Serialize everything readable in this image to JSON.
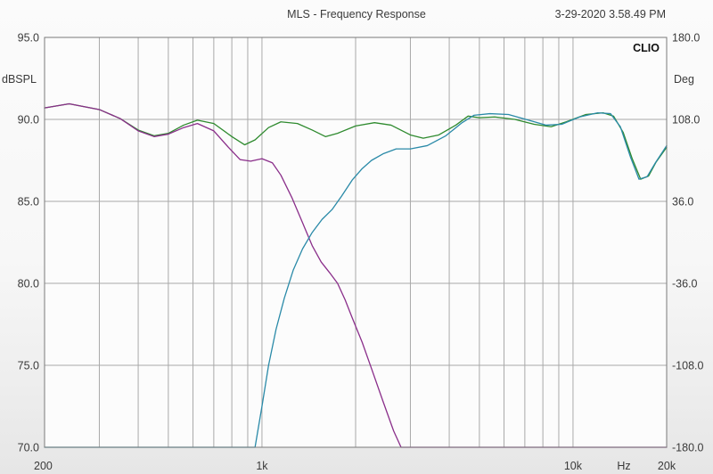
{
  "header": {
    "title": "MLS - Frequency Response",
    "timestamp": "3-29-2020 3.58.49 PM",
    "brand": "CLIO"
  },
  "chart_data": {
    "type": "line",
    "title": "MLS - Frequency Response",
    "x_scale": "log",
    "xlim": [
      200,
      20000
    ],
    "ylim": [
      70,
      95
    ],
    "y2lim": [
      -180,
      180
    ],
    "ylabel": "dBSPL",
    "y2label": "Deg",
    "xunit_label": "Hz",
    "x_ticks": [
      {
        "value": 200,
        "label": "200"
      },
      {
        "value": 1000,
        "label": "1k"
      },
      {
        "value": 10000,
        "label": "10k"
      },
      {
        "value": 20000,
        "label": "20k"
      }
    ],
    "y_ticks": [
      {
        "value": 95,
        "label": "95.0"
      },
      {
        "value": 90,
        "label": "90.0"
      },
      {
        "value": 85,
        "label": "85.0"
      },
      {
        "value": 80,
        "label": "80.0"
      },
      {
        "value": 75,
        "label": "75.0"
      },
      {
        "value": 70,
        "label": "70.0"
      }
    ],
    "y2_ticks": [
      {
        "value": 180,
        "label": "180.0"
      },
      {
        "value": 108,
        "label": "108.0"
      },
      {
        "value": 36,
        "label": "36.0"
      },
      {
        "value": -36,
        "label": "-36.0"
      },
      {
        "value": -108,
        "label": "-108.0"
      },
      {
        "value": -180,
        "label": "-180.0"
      }
    ],
    "grid": true,
    "series": [
      {
        "color": "#2e8a2e",
        "points": [
          [
            200,
            90.7
          ],
          [
            240,
            90.95
          ],
          [
            300,
            90.6
          ],
          [
            350,
            90.05
          ],
          [
            400,
            89.35
          ],
          [
            450,
            89.0
          ],
          [
            500,
            89.15
          ],
          [
            560,
            89.65
          ],
          [
            620,
            89.95
          ],
          [
            700,
            89.75
          ],
          [
            800,
            88.95
          ],
          [
            880,
            88.45
          ],
          [
            950,
            88.75
          ],
          [
            1050,
            89.5
          ],
          [
            1150,
            89.85
          ],
          [
            1300,
            89.75
          ],
          [
            1450,
            89.35
          ],
          [
            1600,
            88.95
          ],
          [
            1750,
            89.15
          ],
          [
            2000,
            89.6
          ],
          [
            2300,
            89.8
          ],
          [
            2600,
            89.65
          ],
          [
            3000,
            89.05
          ],
          [
            3300,
            88.85
          ],
          [
            3700,
            89.05
          ],
          [
            4200,
            89.65
          ],
          [
            4600,
            90.2
          ],
          [
            5000,
            90.1
          ],
          [
            5600,
            90.15
          ],
          [
            6500,
            90.0
          ],
          [
            7500,
            89.7
          ],
          [
            8500,
            89.55
          ],
          [
            9500,
            89.85
          ],
          [
            11000,
            90.3
          ],
          [
            12500,
            90.4
          ],
          [
            13500,
            90.2
          ],
          [
            14500,
            89.2
          ],
          [
            15500,
            87.6
          ],
          [
            16500,
            86.35
          ],
          [
            17500,
            86.55
          ],
          [
            18500,
            87.4
          ],
          [
            20000,
            88.3
          ]
        ]
      },
      {
        "color": "#8a2e8a",
        "points": [
          [
            200,
            90.7
          ],
          [
            240,
            90.95
          ],
          [
            300,
            90.6
          ],
          [
            350,
            90.05
          ],
          [
            400,
            89.3
          ],
          [
            450,
            88.95
          ],
          [
            500,
            89.1
          ],
          [
            560,
            89.5
          ],
          [
            620,
            89.75
          ],
          [
            700,
            89.3
          ],
          [
            780,
            88.3
          ],
          [
            850,
            87.55
          ],
          [
            920,
            87.45
          ],
          [
            1000,
            87.6
          ],
          [
            1080,
            87.35
          ],
          [
            1150,
            86.6
          ],
          [
            1250,
            85.2
          ],
          [
            1350,
            83.7
          ],
          [
            1450,
            82.3
          ],
          [
            1550,
            81.3
          ],
          [
            1650,
            80.65
          ],
          [
            1750,
            80.0
          ],
          [
            1850,
            79.0
          ],
          [
            1950,
            77.9
          ],
          [
            2100,
            76.4
          ],
          [
            2250,
            74.8
          ],
          [
            2450,
            72.8
          ],
          [
            2650,
            71.0
          ],
          [
            2800,
            70.0
          ],
          [
            20000,
            70.0
          ]
        ]
      },
      {
        "color": "#2a8aa8",
        "points": [
          [
            200,
            70.0
          ],
          [
            950,
            70.0
          ],
          [
            1000,
            72.5
          ],
          [
            1050,
            75.0
          ],
          [
            1110,
            77.2
          ],
          [
            1180,
            79.1
          ],
          [
            1260,
            80.8
          ],
          [
            1350,
            82.1
          ],
          [
            1450,
            83.1
          ],
          [
            1560,
            83.9
          ],
          [
            1680,
            84.5
          ],
          [
            1800,
            85.3
          ],
          [
            1950,
            86.3
          ],
          [
            2100,
            87.0
          ],
          [
            2250,
            87.5
          ],
          [
            2450,
            87.9
          ],
          [
            2700,
            88.2
          ],
          [
            3000,
            88.2
          ],
          [
            3400,
            88.4
          ],
          [
            3900,
            89.0
          ],
          [
            4400,
            89.8
          ],
          [
            4800,
            90.25
          ],
          [
            5400,
            90.35
          ],
          [
            6200,
            90.3
          ],
          [
            7200,
            89.95
          ],
          [
            8200,
            89.65
          ],
          [
            9200,
            89.7
          ],
          [
            10500,
            90.15
          ],
          [
            12000,
            90.4
          ],
          [
            13200,
            90.35
          ],
          [
            14200,
            89.55
          ],
          [
            15300,
            87.7
          ],
          [
            16300,
            86.35
          ],
          [
            17300,
            86.5
          ],
          [
            18400,
            87.35
          ],
          [
            20000,
            88.4
          ]
        ]
      }
    ]
  }
}
